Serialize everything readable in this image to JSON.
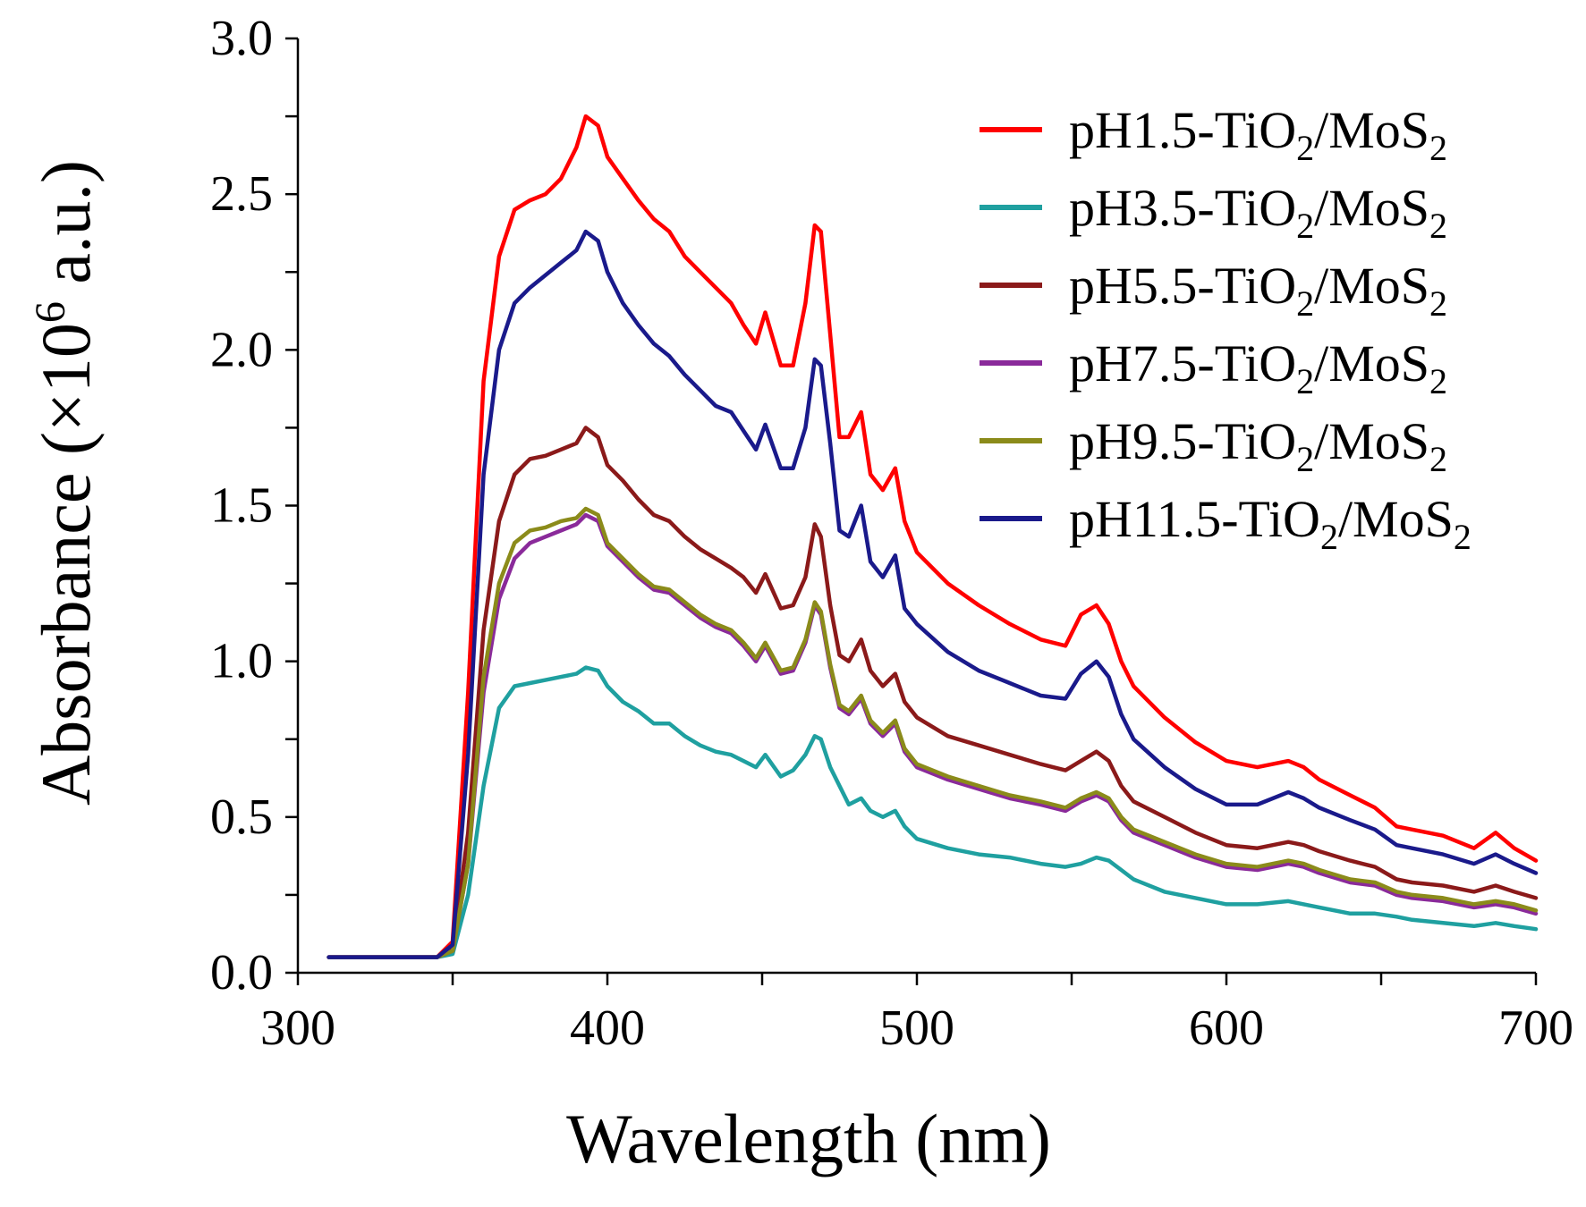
{
  "chart_data": {
    "type": "line",
    "title": "",
    "xlabel": "Wavelength (nm)",
    "ylabel": {
      "prefix": "Absorbance (×10",
      "exponent": "6",
      "suffix": " a.u.)"
    },
    "xlim": [
      300,
      700
    ],
    "ylim": [
      0,
      3.0
    ],
    "x_ticks": [
      300,
      400,
      500,
      600,
      700
    ],
    "x_tick_labels": [
      "300",
      "400",
      "500",
      "600",
      "700"
    ],
    "y_ticks": [
      0,
      0.5,
      1.0,
      1.5,
      2.0,
      2.5,
      3.0
    ],
    "y_tick_labels": [
      "0.0",
      "0.5",
      "1.0",
      "1.5",
      "2.0",
      "2.5",
      "3.0"
    ],
    "grid": false,
    "legend_position": "top-right",
    "x": [
      310,
      345,
      350,
      355,
      360,
      365,
      370,
      375,
      380,
      385,
      390,
      393,
      397,
      400,
      405,
      410,
      415,
      420,
      425,
      430,
      435,
      440,
      444,
      448,
      451,
      456,
      460,
      464,
      467,
      469,
      472,
      475,
      478,
      482,
      485,
      489,
      493,
      496,
      500,
      510,
      520,
      530,
      540,
      548,
      553,
      558,
      562,
      566,
      570,
      580,
      590,
      600,
      610,
      620,
      625,
      630,
      640,
      648,
      655,
      660,
      670,
      680,
      687,
      693,
      700
    ],
    "series": [
      {
        "name": "pH1.5-TiO2/MoS2",
        "legend": {
          "base": "pH1.5-TiO",
          "sub1": "2",
          "mid": "/MoS",
          "sub2": "2"
        },
        "color": "#ff0000",
        "values": [
          0.05,
          0.05,
          0.1,
          0.9,
          1.9,
          2.3,
          2.45,
          2.48,
          2.5,
          2.55,
          2.65,
          2.75,
          2.72,
          2.62,
          2.55,
          2.48,
          2.42,
          2.38,
          2.3,
          2.25,
          2.2,
          2.15,
          2.08,
          2.02,
          2.12,
          1.95,
          1.95,
          2.15,
          2.4,
          2.38,
          2.05,
          1.72,
          1.72,
          1.8,
          1.6,
          1.55,
          1.62,
          1.45,
          1.35,
          1.25,
          1.18,
          1.12,
          1.07,
          1.05,
          1.15,
          1.18,
          1.12,
          1.0,
          0.92,
          0.82,
          0.74,
          0.68,
          0.66,
          0.68,
          0.66,
          0.62,
          0.57,
          0.53,
          0.47,
          0.46,
          0.44,
          0.4,
          0.45,
          0.4,
          0.36
        ]
      },
      {
        "name": "pH3.5-TiO2/MoS2",
        "legend": {
          "base": "pH3.5-TiO",
          "sub1": "2",
          "mid": "/MoS",
          "sub2": "2"
        },
        "color": "#1fa0a0",
        "values": [
          0.05,
          0.05,
          0.06,
          0.25,
          0.6,
          0.85,
          0.92,
          0.93,
          0.94,
          0.95,
          0.96,
          0.98,
          0.97,
          0.92,
          0.87,
          0.84,
          0.8,
          0.8,
          0.76,
          0.73,
          0.71,
          0.7,
          0.68,
          0.66,
          0.7,
          0.63,
          0.65,
          0.7,
          0.76,
          0.75,
          0.66,
          0.6,
          0.54,
          0.56,
          0.52,
          0.5,
          0.52,
          0.47,
          0.43,
          0.4,
          0.38,
          0.37,
          0.35,
          0.34,
          0.35,
          0.37,
          0.36,
          0.33,
          0.3,
          0.26,
          0.24,
          0.22,
          0.22,
          0.23,
          0.22,
          0.21,
          0.19,
          0.19,
          0.18,
          0.17,
          0.16,
          0.15,
          0.16,
          0.15,
          0.14
        ]
      },
      {
        "name": "pH5.5-TiO2/MoS2",
        "legend": {
          "base": "pH5.5-TiO",
          "sub1": "2",
          "mid": "/MoS",
          "sub2": "2"
        },
        "color": "#8b1a1a",
        "values": [
          0.05,
          0.05,
          0.08,
          0.45,
          1.1,
          1.45,
          1.6,
          1.65,
          1.66,
          1.68,
          1.7,
          1.75,
          1.72,
          1.63,
          1.58,
          1.52,
          1.47,
          1.45,
          1.4,
          1.36,
          1.33,
          1.3,
          1.27,
          1.22,
          1.28,
          1.17,
          1.18,
          1.27,
          1.44,
          1.4,
          1.18,
          1.02,
          1.0,
          1.07,
          0.97,
          0.92,
          0.96,
          0.87,
          0.82,
          0.76,
          0.73,
          0.7,
          0.67,
          0.65,
          0.68,
          0.71,
          0.68,
          0.6,
          0.55,
          0.5,
          0.45,
          0.41,
          0.4,
          0.42,
          0.41,
          0.39,
          0.36,
          0.34,
          0.3,
          0.29,
          0.28,
          0.26,
          0.28,
          0.26,
          0.24
        ]
      },
      {
        "name": "pH7.5-TiO2/MoS2",
        "legend": {
          "base": "pH7.5-TiO",
          "sub1": "2",
          "mid": "/MoS",
          "sub2": "2"
        },
        "color": "#8a2a9a",
        "values": [
          0.05,
          0.05,
          0.07,
          0.35,
          0.9,
          1.2,
          1.33,
          1.38,
          1.4,
          1.42,
          1.44,
          1.47,
          1.45,
          1.37,
          1.32,
          1.27,
          1.23,
          1.22,
          1.18,
          1.14,
          1.11,
          1.09,
          1.05,
          1.0,
          1.05,
          0.96,
          0.97,
          1.06,
          1.18,
          1.15,
          0.98,
          0.85,
          0.83,
          0.88,
          0.8,
          0.76,
          0.8,
          0.71,
          0.66,
          0.62,
          0.59,
          0.56,
          0.54,
          0.52,
          0.55,
          0.57,
          0.55,
          0.49,
          0.45,
          0.41,
          0.37,
          0.34,
          0.33,
          0.35,
          0.34,
          0.32,
          0.29,
          0.28,
          0.25,
          0.24,
          0.23,
          0.21,
          0.22,
          0.21,
          0.19
        ]
      },
      {
        "name": "pH9.5-TiO2/MoS2",
        "legend": {
          "base": "pH9.5-TiO",
          "sub1": "2",
          "mid": "/MoS",
          "sub2": "2"
        },
        "color": "#8b8b1a",
        "values": [
          0.05,
          0.05,
          0.07,
          0.35,
          0.95,
          1.25,
          1.38,
          1.42,
          1.43,
          1.45,
          1.46,
          1.49,
          1.47,
          1.38,
          1.33,
          1.28,
          1.24,
          1.23,
          1.19,
          1.15,
          1.12,
          1.1,
          1.06,
          1.01,
          1.06,
          0.97,
          0.98,
          1.07,
          1.19,
          1.16,
          0.99,
          0.86,
          0.84,
          0.89,
          0.81,
          0.77,
          0.81,
          0.72,
          0.67,
          0.63,
          0.6,
          0.57,
          0.55,
          0.53,
          0.56,
          0.58,
          0.56,
          0.5,
          0.46,
          0.42,
          0.38,
          0.35,
          0.34,
          0.36,
          0.35,
          0.33,
          0.3,
          0.29,
          0.26,
          0.25,
          0.24,
          0.22,
          0.23,
          0.22,
          0.2
        ]
      },
      {
        "name": "pH11.5-TiO2/MoS2",
        "legend": {
          "base": "pH11.5-TiO",
          "sub1": "2",
          "mid": "/MoS",
          "sub2": "2"
        },
        "color": "#1a1a8b",
        "values": [
          0.05,
          0.05,
          0.09,
          0.7,
          1.6,
          2.0,
          2.15,
          2.2,
          2.24,
          2.28,
          2.32,
          2.38,
          2.35,
          2.25,
          2.15,
          2.08,
          2.02,
          1.98,
          1.92,
          1.87,
          1.82,
          1.8,
          1.74,
          1.68,
          1.76,
          1.62,
          1.62,
          1.75,
          1.97,
          1.95,
          1.7,
          1.42,
          1.4,
          1.5,
          1.32,
          1.27,
          1.34,
          1.17,
          1.12,
          1.03,
          0.97,
          0.93,
          0.89,
          0.88,
          0.96,
          1.0,
          0.95,
          0.83,
          0.75,
          0.66,
          0.59,
          0.54,
          0.54,
          0.58,
          0.56,
          0.53,
          0.49,
          0.46,
          0.41,
          0.4,
          0.38,
          0.35,
          0.38,
          0.35,
          0.32
        ]
      }
    ]
  }
}
